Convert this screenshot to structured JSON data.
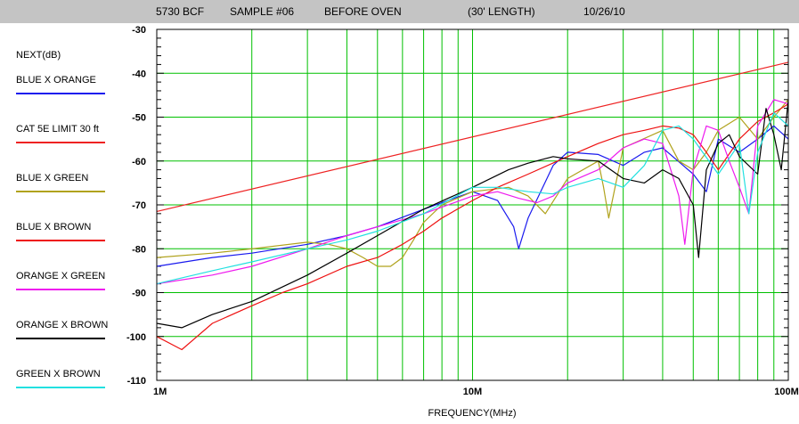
{
  "header": {
    "cable": "5730 BCF",
    "sample": "SAMPLE #06",
    "condition": "BEFORE OVEN",
    "length": "(30'  LENGTH)",
    "date": "10/26/10"
  },
  "colors": {
    "title_bar": "#c4c4c4",
    "grid": "#00c000",
    "background": "#ffffff"
  },
  "chart_data": {
    "type": "line",
    "ylabel": "NEXT(dB)",
    "xlabel": "FREQUENCY(MHz)",
    "xscale": "log",
    "xlim": [
      1,
      100
    ],
    "ylim": [
      -110,
      -30
    ],
    "grid": true,
    "legend_position": "left",
    "x_tick_labels": [
      {
        "x": 1,
        "label": "1M"
      },
      {
        "x": 10,
        "label": "10M"
      },
      {
        "x": 100,
        "label": "100M"
      }
    ],
    "y_tick_labels": [
      {
        "y": -30,
        "label": "-30"
      },
      {
        "y": -40,
        "label": "-40"
      },
      {
        "y": -50,
        "label": "-50"
      },
      {
        "y": -60,
        "label": "-60"
      },
      {
        "y": -70,
        "label": "-70"
      },
      {
        "y": -80,
        "label": "-80"
      },
      {
        "y": -90,
        "label": "-90"
      },
      {
        "y": -100,
        "label": "-100"
      },
      {
        "y": -110,
        "label": "-110"
      }
    ],
    "series": [
      {
        "name": "BLUE X ORANGE",
        "color": "#1a1aee",
        "x": [
          1,
          1.5,
          2,
          3,
          4,
          5,
          7,
          10,
          12,
          13.5,
          14,
          15,
          18,
          20,
          25,
          30,
          35,
          40,
          50,
          55,
          60,
          70,
          80,
          90,
          100
        ],
        "y": [
          -84,
          -82,
          -81,
          -79,
          -77,
          -75,
          -71,
          -67,
          -69,
          -75,
          -80,
          -73,
          -61,
          -58,
          -58.5,
          -61,
          -58,
          -57,
          -63,
          -67,
          -55,
          -58,
          -55,
          -52,
          -55
        ]
      },
      {
        "name": "CAT 5E LIMIT 30 ft",
        "color": "#ee2222",
        "x": [
          1,
          100
        ],
        "y": [
          -71.5,
          -37.5
        ]
      },
      {
        "name": "BLUE X GREEN",
        "color": "#b0a21c",
        "x": [
          1,
          1.5,
          2,
          3,
          3.5,
          4,
          4.5,
          5,
          5.5,
          6,
          6.5,
          7,
          8,
          10,
          13,
          15,
          17,
          20,
          25,
          26,
          27,
          30,
          40,
          45,
          50,
          55,
          60,
          70,
          80,
          90,
          100
        ],
        "y": [
          -82,
          -81,
          -80,
          -78.5,
          -79,
          -80,
          -82,
          -84,
          -84,
          -82,
          -78,
          -74,
          -70,
          -67,
          -66,
          -68,
          -72,
          -64,
          -60,
          -66,
          -73,
          -57,
          -53,
          -60,
          -62,
          -58,
          -53,
          -50,
          -55,
          -50,
          -46
        ]
      },
      {
        "name": "BLUE X BROWN",
        "color": "#ee1111",
        "x": [
          1,
          1.2,
          1.5,
          2,
          2.5,
          3,
          4,
          5,
          6,
          7,
          8,
          10,
          12,
          15,
          20,
          25,
          30,
          35,
          40,
          45,
          50,
          55,
          60,
          70,
          80,
          90,
          100
        ],
        "y": [
          -100,
          -103,
          -97,
          -93,
          -90,
          -88,
          -84,
          -82,
          -79,
          -76,
          -73,
          -69,
          -66,
          -63,
          -59,
          -56,
          -54,
          -53,
          -52,
          -52.5,
          -54,
          -58,
          -62,
          -55,
          -51,
          -49,
          -47
        ]
      },
      {
        "name": "ORANGE X GREEN",
        "color": "#ee1aee",
        "x": [
          1,
          1.5,
          2,
          3,
          4,
          5,
          7,
          10,
          12,
          14,
          16,
          18,
          20,
          25,
          30,
          35,
          40,
          45,
          47,
          50,
          55,
          60,
          65,
          70,
          75,
          80,
          90,
          100
        ],
        "y": [
          -88,
          -86,
          -84,
          -80,
          -77,
          -75,
          -72,
          -68,
          -67,
          -68.5,
          -69.5,
          -68,
          -65,
          -62,
          -57,
          -55,
          -56,
          -68,
          -79,
          -62,
          -52,
          -53,
          -60,
          -66,
          -72,
          -52,
          -46,
          -47
        ]
      },
      {
        "name": "ORANGE X BROWN",
        "color": "#000000",
        "x": [
          1,
          1.2,
          1.5,
          2,
          3,
          4,
          5,
          7,
          10,
          13,
          15,
          18,
          20,
          25,
          30,
          35,
          40,
          45,
          50,
          52,
          55,
          60,
          65,
          70,
          80,
          85,
          90,
          95,
          100
        ],
        "y": [
          -97,
          -98,
          -95,
          -92,
          -86,
          -81,
          -77,
          -71,
          -66,
          -62,
          -60.5,
          -59,
          -59.5,
          -60,
          -64,
          -65,
          -62,
          -64,
          -70,
          -82,
          -62,
          -56,
          -54,
          -59,
          -63,
          -48,
          -54,
          -62,
          -46
        ]
      },
      {
        "name": "GREEN X BROWN",
        "color": "#22e0e0",
        "x": [
          1,
          1.5,
          2,
          3,
          4,
          5,
          7,
          10,
          12,
          15,
          18,
          20,
          25,
          30,
          35,
          40,
          45,
          50,
          60,
          70,
          75,
          80,
          90,
          100
        ],
        "y": [
          -88,
          -85,
          -83,
          -80,
          -78,
          -76,
          -72,
          -66,
          -66,
          -67,
          -67.5,
          -66,
          -64,
          -66,
          -61,
          -53,
          -52,
          -55,
          -63,
          -56,
          -72,
          -58,
          -49,
          -52
        ]
      }
    ]
  }
}
